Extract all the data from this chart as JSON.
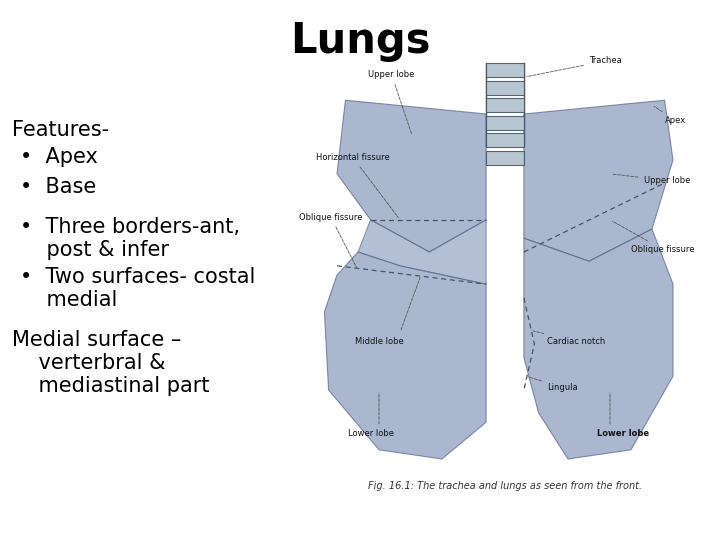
{
  "title": "Lungs",
  "title_fontsize": 30,
  "bg_color": "#ffffff",
  "text_color": "#000000",
  "features_label": "Features-",
  "features_fontsize": 15,
  "bullet_fontsize": 15,
  "bullet_marker": "•",
  "extra_text_fontsize": 15,
  "image_bg": "#dcdce8",
  "lung_color": "#8899bb",
  "lung_edge": "#556688",
  "trachea_color": "#aabbcc",
  "ann_color": "#111111",
  "ann_fs": 6.0,
  "caption": "Fig. 16.1: The trachea and lungs as seen from the front.",
  "caption_fontsize": 7.0
}
